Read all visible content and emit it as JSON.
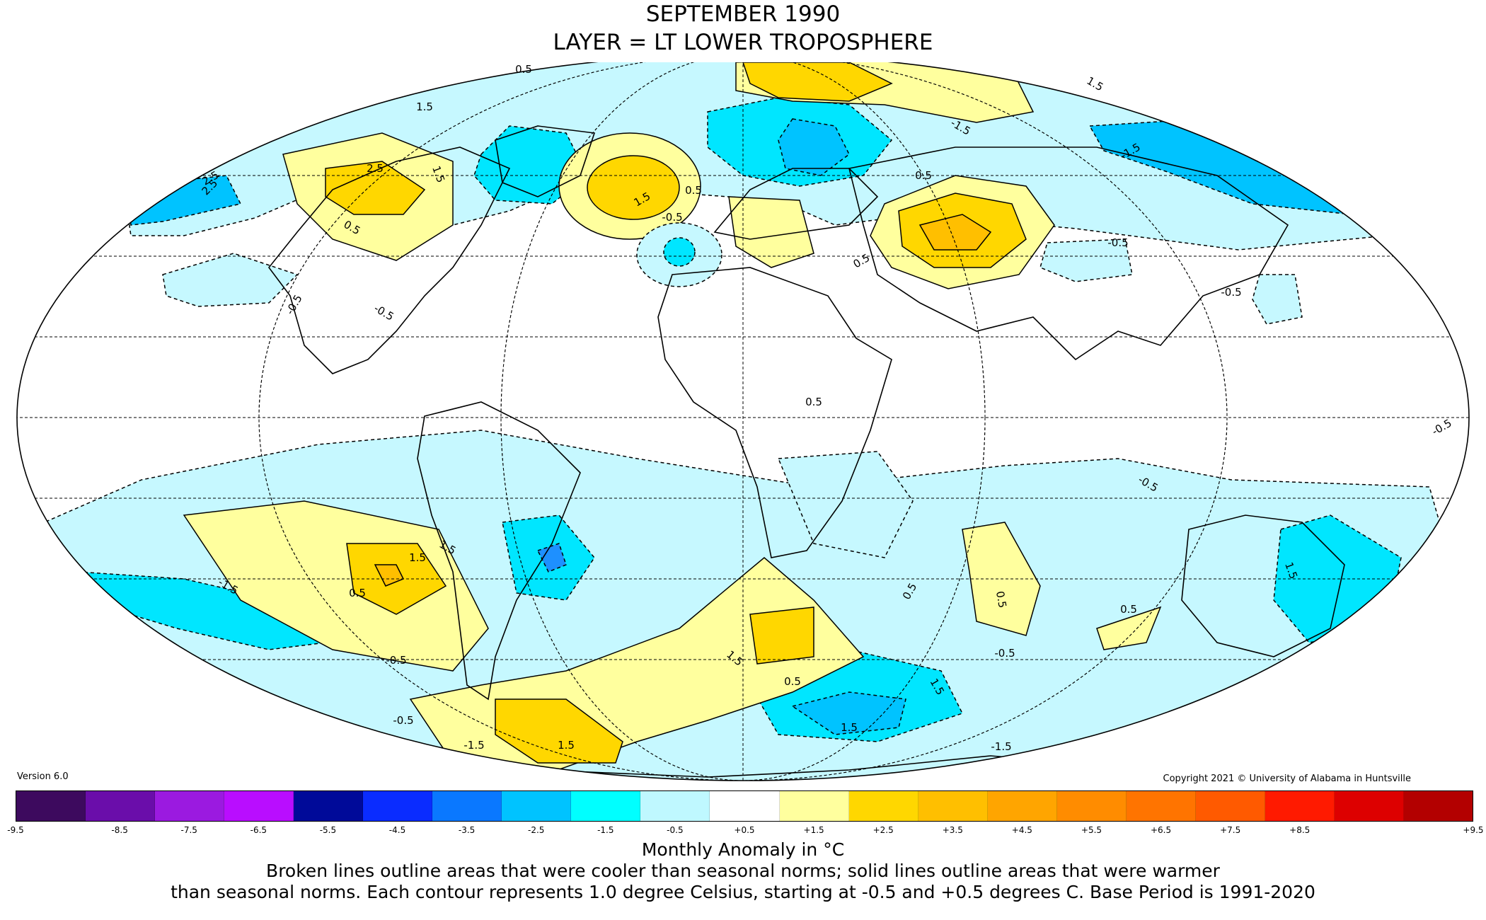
{
  "title": {
    "line1": "SEPTEMBER 1990",
    "line2": "LAYER = LT LOWER TROPOSPHERE"
  },
  "version": "Version 6.0",
  "copyright": "Copyright 2021 © University of Alabama in Huntsville",
  "colorbar": {
    "colors": [
      "#3d0a5e",
      "#6a0daa",
      "#9b1ae0",
      "#b90dff",
      "#000a99",
      "#0a2cff",
      "#0a78ff",
      "#00c3ff",
      "#00ffff",
      "#bff8ff",
      "#ffffff",
      "#ffff9e",
      "#ffd700",
      "#ffbf00",
      "#ffa500",
      "#ff8c00",
      "#ff7400",
      "#ff5a00",
      "#ff1a00",
      "#dd0000",
      "#b30000"
    ],
    "ticks": [
      "-9.5",
      "-8.5",
      "-7.5",
      "-6.5",
      "-5.5",
      "-4.5",
      "-3.5",
      "-2.5",
      "-1.5",
      "-0.5",
      "+0.5",
      "+1.5",
      "+2.5",
      "+3.5",
      "+4.5",
      "+5.5",
      "+6.5",
      "+7.5",
      "+8.5",
      "+9.5"
    ],
    "label": "Monthly Anomaly in °C"
  },
  "caption": {
    "line1": "Broken lines outline areas that were cooler than seasonal norms; solid lines outline areas that were warmer",
    "line2": "than seasonal norms. Each contour represents 1.0 degree Celsius, starting at -0.5 and +0.5 degrees C. Base Period is 1991-2020"
  },
  "map": {
    "projection": "Mollweide",
    "contour_labels": [
      "-0.5",
      "-1.5",
      "-2.5",
      "0.5",
      "1.5",
      "2.5"
    ],
    "regions": [
      {
        "anomaly": "+0.5 to +1.5",
        "location": "Western Canada / Alaska"
      },
      {
        "anomaly": "+1.5 to +2.5",
        "location": "North Atlantic"
      },
      {
        "anomaly": "+1.5 to +2.5",
        "location": "Central Asia"
      },
      {
        "anomaly": "+0.5 to +1.5",
        "location": "Arctic north of Europe"
      },
      {
        "anomaly": "-2.5 to -1.5",
        "location": "Eastern Europe / Western Russia"
      },
      {
        "anomaly": "-1.5 to -0.5",
        "location": "Greenland"
      },
      {
        "anomaly": "-2.5 to -0.5",
        "location": "Siberia"
      },
      {
        "anomaly": "+1.5 to +2.5",
        "location": "South Pacific"
      },
      {
        "anomaly": "-2.5 to -1.5",
        "location": "Southern South America"
      },
      {
        "anomaly": "+1.5 to +2.5",
        "location": "South Atlantic"
      },
      {
        "anomaly": "+0.5 to +2.5",
        "location": "Southern Ocean south of South America"
      },
      {
        "anomaly": "-2.5 to -1.5",
        "location": "Antarctica coast south of Indian Ocean"
      },
      {
        "anomaly": "-1.5 to -0.5",
        "location": "Australia"
      },
      {
        "anomaly": "+0.5 to +1.5",
        "location": "Southern Indian Ocean"
      }
    ]
  }
}
